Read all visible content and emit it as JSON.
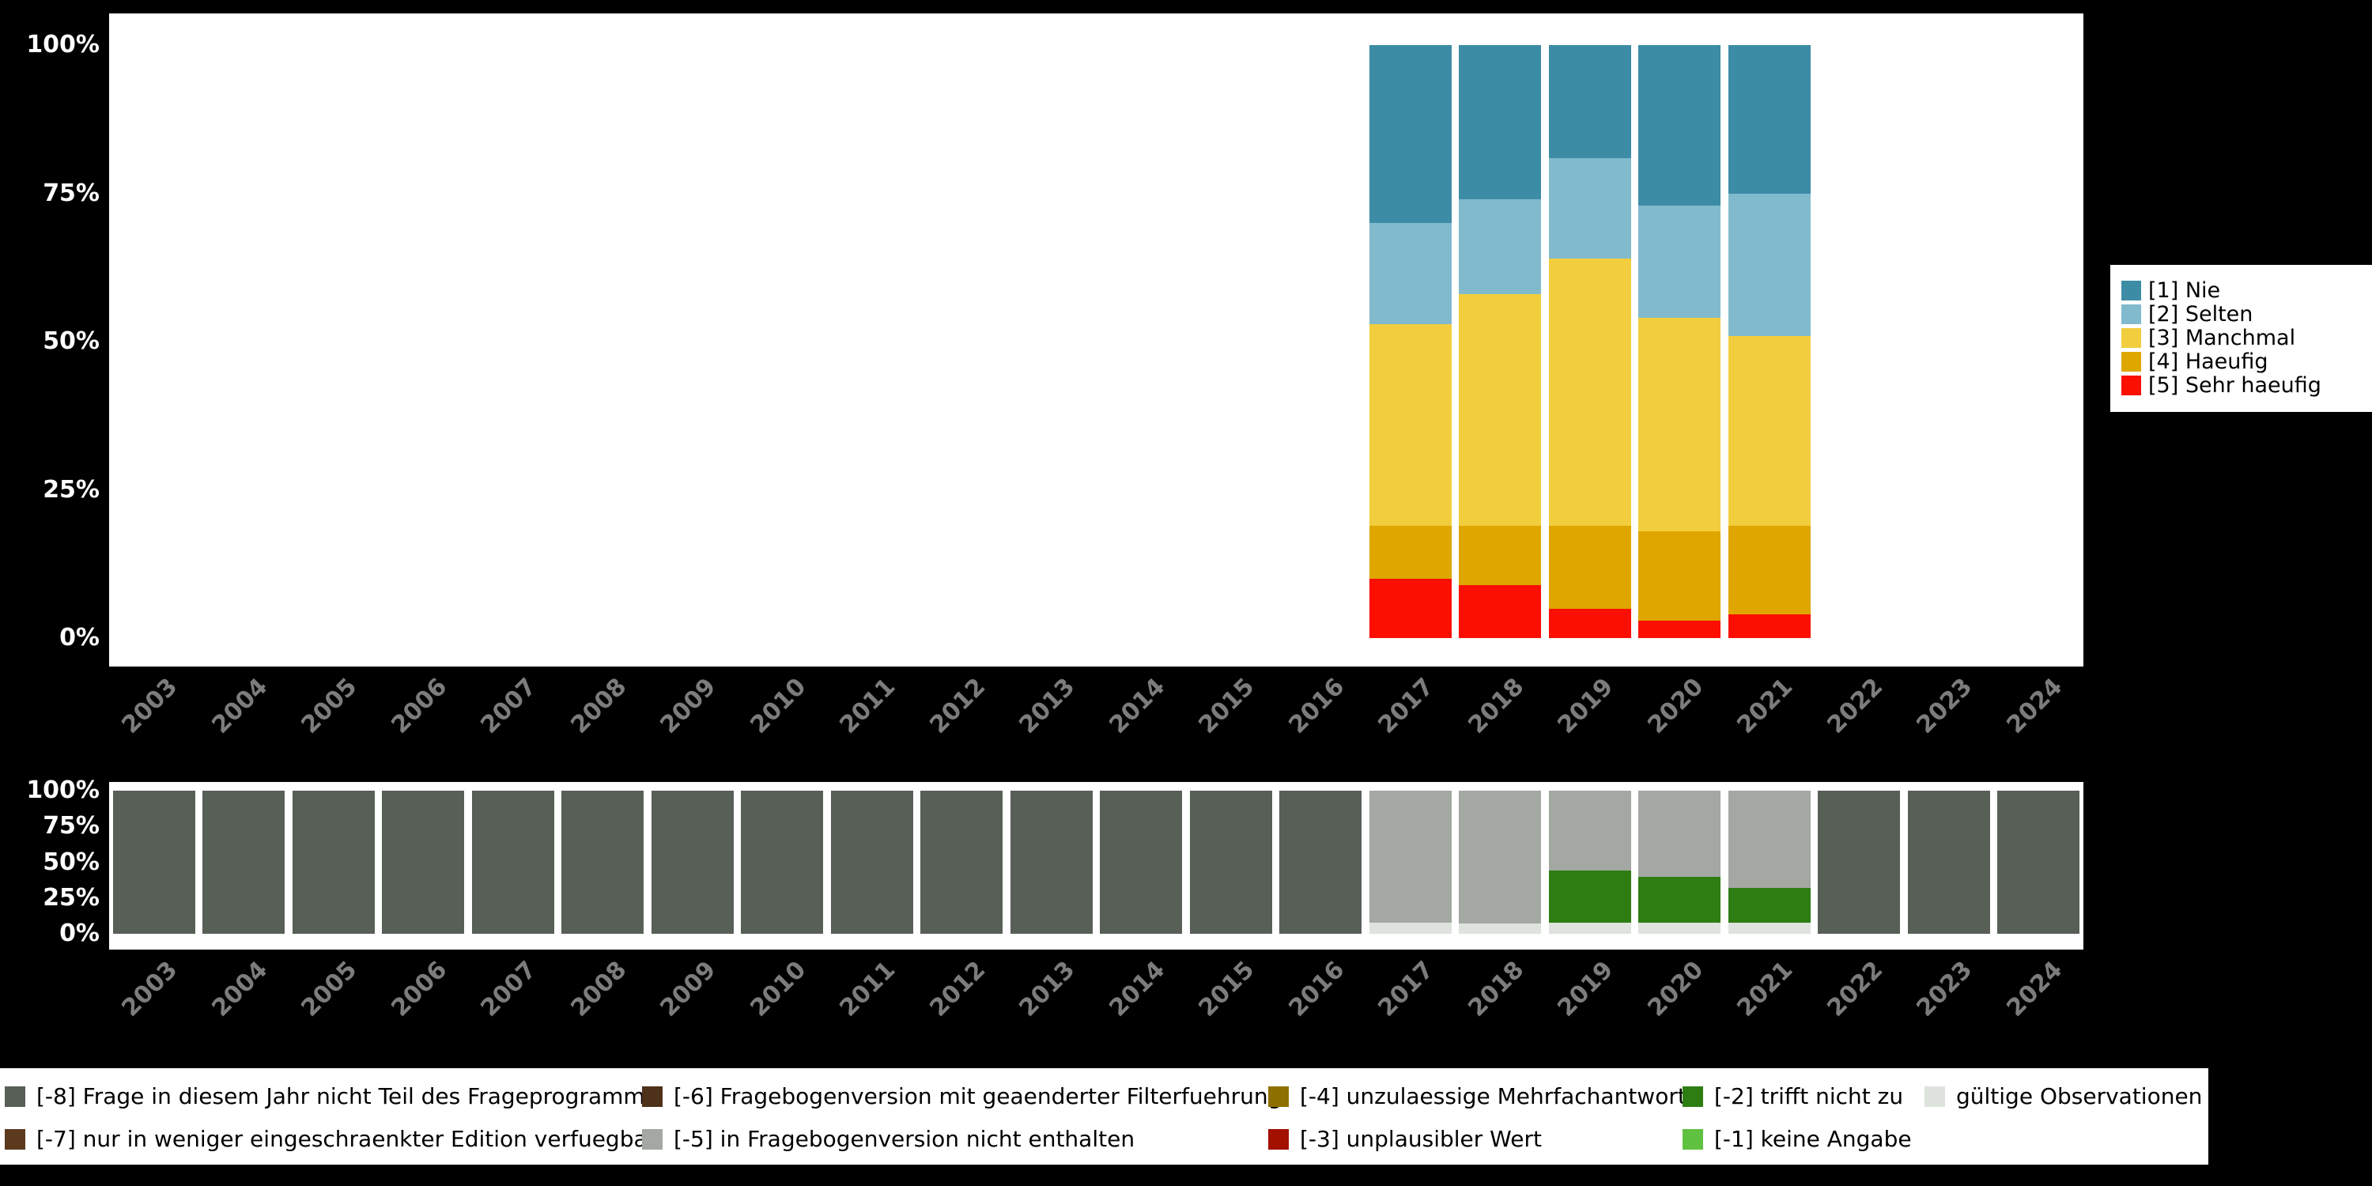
{
  "page": {
    "background": "#000000",
    "panel_background": "#FFFFFF"
  },
  "axes": {
    "y_tick_labels": [
      "100%",
      "75%",
      "50%",
      "25%",
      "0%"
    ],
    "y_tick_values": [
      100,
      75,
      50,
      25,
      0
    ],
    "years": [
      "2003",
      "2004",
      "2005",
      "2006",
      "2007",
      "2008",
      "2009",
      "2010",
      "2011",
      "2012",
      "2013",
      "2014",
      "2015",
      "2016",
      "2017",
      "2018",
      "2019",
      "2020",
      "2021",
      "2022",
      "2023",
      "2024"
    ],
    "y_label_color": "#FFFFFF",
    "x_label_color": "#7C7C7C"
  },
  "chart_data": [
    {
      "name": "answer-frequencies",
      "type": "bar",
      "stacked": true,
      "orientation": "vertical",
      "unit": "percent",
      "ylim": [
        0,
        100
      ],
      "grid": false,
      "legend_position": "right",
      "categories": [
        "2003",
        "2004",
        "2005",
        "2006",
        "2007",
        "2008",
        "2009",
        "2010",
        "2011",
        "2012",
        "2013",
        "2014",
        "2015",
        "2016",
        "2017",
        "2018",
        "2019",
        "2020",
        "2021",
        "2022",
        "2023",
        "2024"
      ],
      "series": [
        {
          "name": "[5] Sehr haeufig",
          "color": "#FA0F00",
          "values": [
            0,
            0,
            0,
            0,
            0,
            0,
            0,
            0,
            0,
            0,
            0,
            0,
            0,
            0,
            10,
            9,
            5,
            3,
            4,
            0,
            0,
            0
          ]
        },
        {
          "name": "[4] Haeufig",
          "color": "#DFA600",
          "values": [
            0,
            0,
            0,
            0,
            0,
            0,
            0,
            0,
            0,
            0,
            0,
            0,
            0,
            0,
            9,
            10,
            14,
            15,
            15,
            0,
            0,
            0
          ]
        },
        {
          "name": "[3] Manchmal",
          "color": "#F2CE3E",
          "values": [
            0,
            0,
            0,
            0,
            0,
            0,
            0,
            0,
            0,
            0,
            0,
            0,
            0,
            0,
            34,
            39,
            45,
            36,
            32,
            0,
            0,
            0
          ]
        },
        {
          "name": "[2] Selten",
          "color": "#82BACD",
          "values": [
            0,
            0,
            0,
            0,
            0,
            0,
            0,
            0,
            0,
            0,
            0,
            0,
            0,
            0,
            17,
            16,
            17,
            19,
            24,
            0,
            0,
            0
          ]
        },
        {
          "name": "[1] Nie",
          "color": "#3D8CA6",
          "values": [
            0,
            0,
            0,
            0,
            0,
            0,
            0,
            0,
            0,
            0,
            0,
            0,
            0,
            0,
            30,
            26,
            19,
            27,
            25,
            0,
            0,
            0
          ]
        }
      ]
    },
    {
      "name": "missing-values",
      "type": "bar",
      "stacked": true,
      "orientation": "vertical",
      "unit": "percent",
      "ylim": [
        0,
        100
      ],
      "grid": false,
      "legend_position": "bottom",
      "categories": [
        "2003",
        "2004",
        "2005",
        "2006",
        "2007",
        "2008",
        "2009",
        "2010",
        "2011",
        "2012",
        "2013",
        "2014",
        "2015",
        "2016",
        "2017",
        "2018",
        "2019",
        "2020",
        "2021",
        "2022",
        "2023",
        "2024"
      ],
      "series": [
        {
          "name": "gültige Observationen",
          "color": "#DEE3DD",
          "values": [
            0,
            0,
            0,
            0,
            0,
            0,
            0,
            0,
            0,
            0,
            0,
            0,
            0,
            0,
            8,
            7,
            8,
            8,
            8,
            0,
            0,
            0
          ]
        },
        {
          "name": "[-2] trifft nicht zu",
          "color": "#2E7D13",
          "values": [
            0,
            0,
            0,
            0,
            0,
            0,
            0,
            0,
            0,
            0,
            0,
            0,
            0,
            0,
            0,
            0,
            36,
            32,
            24,
            0,
            0,
            0
          ]
        },
        {
          "name": "[-5] in Fragebogenversion nicht enthalten",
          "color": "#A4A8A2",
          "values": [
            0,
            0,
            0,
            0,
            0,
            0,
            0,
            0,
            0,
            0,
            0,
            0,
            0,
            0,
            92,
            93,
            56,
            60,
            68,
            0,
            0,
            0
          ]
        },
        {
          "name": "[-8] Frage in diesem Jahr nicht Teil des Frageprogramms",
          "color": "#575F57",
          "values": [
            100,
            100,
            100,
            100,
            100,
            100,
            100,
            100,
            100,
            100,
            100,
            100,
            100,
            100,
            0,
            0,
            0,
            0,
            0,
            100,
            100,
            100
          ]
        }
      ]
    }
  ],
  "answers_legend": {
    "items": [
      {
        "label": "[1] Nie",
        "color": "#3D8CA6"
      },
      {
        "label": "[2] Selten",
        "color": "#82BACD"
      },
      {
        "label": "[3] Manchmal",
        "color": "#F2CE3E"
      },
      {
        "label": "[4] Haeufig",
        "color": "#DFA600"
      },
      {
        "label": "[5] Sehr haeufig",
        "color": "#FA0F00"
      }
    ]
  },
  "missing_legend": {
    "items": [
      {
        "label": "[-8] Frage in diesem Jahr nicht Teil des Frageprogramms",
        "color": "#575F57",
        "col": 0,
        "row": 0
      },
      {
        "label": "[-7] nur in weniger eingeschraenkter Edition verfuegbar",
        "color": "#5B3A1E",
        "col": 0,
        "row": 1
      },
      {
        "label": "[-6] Fragebogenversion mit geaenderter Filterfuehrung",
        "color": "#4E3119",
        "col": 1,
        "row": 0
      },
      {
        "label": "[-5] in Fragebogenversion nicht enthalten",
        "color": "#A4A8A2",
        "col": 1,
        "row": 1
      },
      {
        "label": "[-4] unzulaessige Mehrfachantwort",
        "color": "#8E7000",
        "col": 2,
        "row": 0
      },
      {
        "label": "[-3] unplausibler Wert",
        "color": "#A31000",
        "col": 2,
        "row": 1
      },
      {
        "label": "[-2] trifft nicht zu",
        "color": "#2E7D13",
        "col": 3,
        "row": 0
      },
      {
        "label": "[-1] keine Angabe",
        "color": "#5FC140",
        "col": 3,
        "row": 1
      },
      {
        "label": "gültige Observationen",
        "color": "#DEE3DD",
        "col": 4,
        "row": 0
      }
    ]
  }
}
